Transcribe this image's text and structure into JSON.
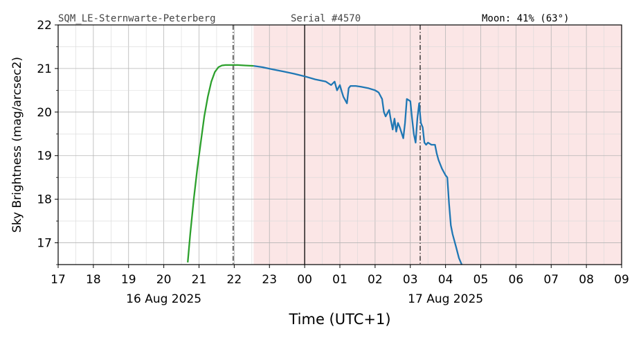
{
  "header": {
    "station": "SQM_LE-Sternwarte-Peterberg",
    "serial": "Serial #4570",
    "moon": "Moon: 41% (63°)"
  },
  "chart_data": {
    "type": "line",
    "title": "",
    "xlabel": "Time (UTC+1)",
    "ylabel": "Sky Brightness (mag/arcsec2)",
    "x_unit": "hours after 16 Aug 2025 00:00 (UTC+1)",
    "xlim": [
      17,
      33
    ],
    "ylim": [
      16.5,
      22
    ],
    "x_tick_labels": [
      "17",
      "18",
      "19",
      "20",
      "21",
      "22",
      "23",
      "00",
      "01",
      "02",
      "03",
      "04",
      "05",
      "06",
      "07",
      "08",
      "09"
    ],
    "date_labels": [
      {
        "at_hour": 20,
        "text": "16 Aug 2025"
      },
      {
        "at_hour": 28,
        "text": "17 Aug 2025"
      }
    ],
    "y_ticks": [
      17,
      18,
      19,
      20,
      21,
      22
    ],
    "grid": true,
    "markers": {
      "dashdot_lines_hours": [
        21.97,
        27.28
      ],
      "midnight_line_hour": 24,
      "shaded_region_hours": [
        22.55,
        33
      ]
    },
    "colors": {
      "twilight": "#2ca02c",
      "night": "#1f77b4",
      "shade": "#fbe6e6",
      "grid": "#cccccc"
    },
    "series": [
      {
        "color_key": "twilight",
        "x": [
          20.68,
          20.75,
          20.85,
          20.95,
          21.05,
          21.15,
          21.25,
          21.35,
          21.45,
          21.55,
          21.65,
          21.75,
          21.85,
          21.95,
          22.1,
          22.3,
          22.55
        ],
        "y": [
          16.55,
          17.2,
          18.0,
          18.7,
          19.3,
          19.9,
          20.35,
          20.7,
          20.92,
          21.03,
          21.07,
          21.08,
          21.08,
          21.08,
          21.08,
          21.07,
          21.06
        ]
      },
      {
        "color_key": "night",
        "x": [
          22.55,
          22.8,
          23.1,
          23.4,
          23.7,
          24.0,
          24.3,
          24.6,
          24.75,
          24.85,
          24.92,
          25.0,
          25.05,
          25.1,
          25.2,
          25.25,
          25.3,
          25.45,
          25.6,
          25.8,
          26.0,
          26.1,
          26.2,
          26.25,
          26.3,
          26.4,
          26.45,
          26.5,
          26.55,
          26.6,
          26.65,
          26.7,
          26.8,
          26.85,
          26.9,
          27.0,
          27.05,
          27.1,
          27.15,
          27.2,
          27.25,
          27.3,
          27.35,
          27.4,
          27.45,
          27.5,
          27.6,
          27.7,
          27.75,
          27.8,
          27.85,
          27.9,
          28.0,
          28.05,
          28.1,
          28.15,
          28.2,
          28.3,
          28.38,
          28.46
        ],
        "y": [
          21.06,
          21.03,
          20.98,
          20.93,
          20.88,
          20.82,
          20.75,
          20.7,
          20.62,
          20.7,
          20.5,
          20.62,
          20.48,
          20.35,
          20.2,
          20.55,
          20.6,
          20.6,
          20.58,
          20.55,
          20.5,
          20.45,
          20.3,
          20.0,
          19.9,
          20.05,
          19.8,
          19.6,
          19.85,
          19.55,
          19.75,
          19.65,
          19.4,
          19.75,
          20.3,
          20.25,
          19.85,
          19.5,
          19.3,
          19.85,
          20.2,
          19.75,
          19.65,
          19.3,
          19.25,
          19.3,
          19.25,
          19.25,
          19.05,
          18.9,
          18.8,
          18.7,
          18.55,
          18.5,
          17.9,
          17.4,
          17.2,
          16.9,
          16.65,
          16.5
        ]
      }
    ]
  }
}
